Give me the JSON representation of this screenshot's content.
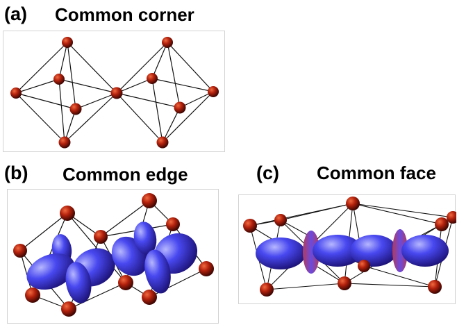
{
  "panels": [
    {
      "tag": "(a)",
      "title": "Common corner"
    },
    {
      "tag": "(b)",
      "title": "Common edge"
    },
    {
      "tag": "(c)",
      "title": "Common face"
    }
  ],
  "colors": {
    "atom_light": "#f06a40",
    "atom_mid": "#b3210c",
    "atom_dark": "#3a0502",
    "orbital_light": "#b7b7ff",
    "orbital_mid": "#4848f0",
    "orbital_dark": "#1a0f70",
    "orbital_rim": "#b43a5a",
    "bond": "#111111",
    "panel_border": "#d2d2d2"
  }
}
